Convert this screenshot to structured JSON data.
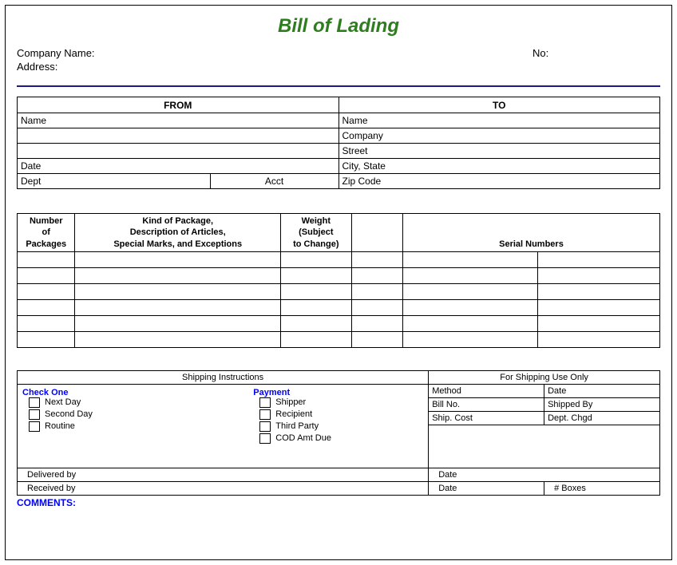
{
  "title": "Bill of Lading",
  "title_color": "#2e7d1f",
  "separator_color": "#1a1a8a",
  "header": {
    "company_label": "Company Name:",
    "address_label": "Address:",
    "no_label": "No:"
  },
  "fromto": {
    "from_header": "FROM",
    "to_header": "TO",
    "from_name": "Name",
    "from_date": "Date",
    "from_dept": "Dept",
    "from_acct": "Acct",
    "to_name": "Name",
    "to_company": "Company",
    "to_street": "Street",
    "to_city": "City, State",
    "to_zip": "Zip Code"
  },
  "pkg": {
    "h1_l1": "Number",
    "h1_l2": "of",
    "h1_l3": "Packages",
    "h2_l1": "Kind of Package,",
    "h2_l2": "Description of Articles,",
    "h2_l3": "Special Marks, and Exceptions",
    "h3_l1": "Weight",
    "h3_l2": "(Subject",
    "h3_l3": "to Change)",
    "h4": "Serial Numbers",
    "row_count": 6
  },
  "bottom": {
    "instructions_header": "Shipping Instructions",
    "shipping_only_header": "For Shipping Use Only",
    "check_one": "Check One",
    "payment": "Payment",
    "chk_nextday": "Next Day",
    "chk_secondday": "Second Day",
    "chk_routine": "Routine",
    "pay_shipper": "Shipper",
    "pay_recipient": "Recipient",
    "pay_third": "Third Party",
    "pay_cod": "COD Amt  Due",
    "method": "Method",
    "date": "Date",
    "billno": "Bill No.",
    "shippedby": "Shipped By",
    "shipcost": "Ship. Cost",
    "deptchgd": "Dept. Chgd",
    "delivered": "Delivered by",
    "received": "Received by",
    "boxes": "# Boxes"
  },
  "comments_label": "COMMENTS:"
}
